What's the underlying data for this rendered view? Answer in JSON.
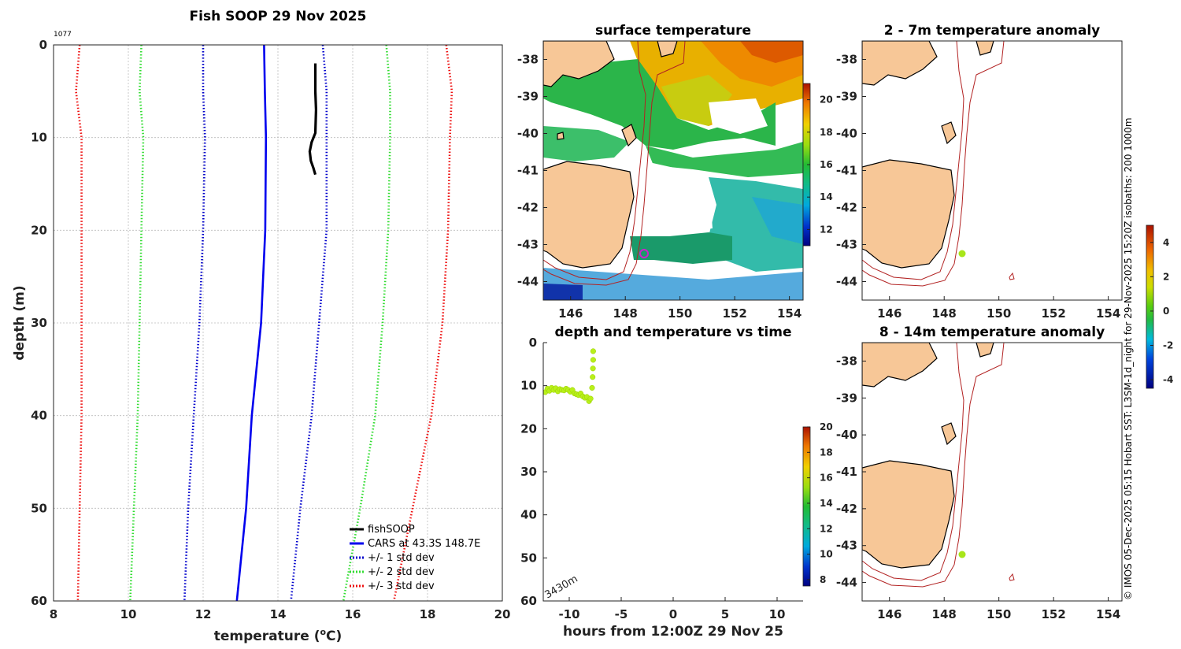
{
  "profile": {
    "title": "Fish SOOP 29 Nov 2025",
    "id_label": "1077",
    "xlabel": "temperature (",
    "xlabel_sup": "o",
    "xlabel_end": "C)",
    "ylabel": "depth (m)",
    "xlim": [
      8,
      20
    ],
    "ylim": [
      0,
      60
    ],
    "xticks": [
      "8",
      "10",
      "12",
      "14",
      "16",
      "18",
      "20"
    ],
    "yticks": [
      "0",
      "10",
      "20",
      "30",
      "40",
      "50",
      "60"
    ],
    "legend": [
      {
        "label": "fishSOOP",
        "color": "#000000",
        "style": "solid"
      },
      {
        "label": "CARS at 43.3S 148.7E",
        "color": "#0000ee",
        "style": "solid"
      },
      {
        "label": "+/- 1 std dev",
        "color": "#0000cc",
        "style": "dotted"
      },
      {
        "label": "+/- 2 std dev",
        "color": "#33dd33",
        "style": "dotted"
      },
      {
        "label": "+/- 3 std dev",
        "color": "#ee1111",
        "style": "dotted"
      }
    ]
  },
  "chart_data": [
    {
      "type": "line",
      "title": "Fish SOOP 29 Nov 2025",
      "xlabel": "temperature (oC)",
      "ylabel": "depth (m)",
      "xlim": [
        8,
        20
      ],
      "ylim": [
        0,
        60
      ],
      "series": [
        {
          "name": "fishSOOP",
          "color": "#000000",
          "points": [
            [
              15.0,
              2.0
            ],
            [
              15.0,
              5.0
            ],
            [
              15.02,
              7.0
            ],
            [
              15.0,
              9.5
            ],
            [
              14.9,
              10.5
            ],
            [
              14.85,
              11.5
            ],
            [
              14.88,
              12.5
            ],
            [
              14.95,
              13.3
            ],
            [
              15.0,
              14.0
            ]
          ]
        },
        {
          "name": "CARS at 43.3S 148.7E",
          "color": "#0000ee",
          "points": [
            [
              13.63,
              0
            ],
            [
              13.65,
              5
            ],
            [
              13.68,
              10
            ],
            [
              13.66,
              20
            ],
            [
              13.55,
              30
            ],
            [
              13.3,
              40
            ],
            [
              13.15,
              50
            ],
            [
              12.9,
              60
            ]
          ]
        },
        {
          "name": "+/- 1 std dev (low)",
          "color": "#0000cc",
          "dotted": true,
          "points": [
            [
              12.0,
              0
            ],
            [
              12.0,
              5
            ],
            [
              12.05,
              10
            ],
            [
              12.0,
              20
            ],
            [
              11.9,
              30
            ],
            [
              11.75,
              40
            ],
            [
              11.6,
              50
            ],
            [
              11.5,
              60
            ]
          ]
        },
        {
          "name": "+/- 1 std dev (high)",
          "color": "#0000cc",
          "dotted": true,
          "points": [
            [
              15.2,
              0
            ],
            [
              15.3,
              5
            ],
            [
              15.3,
              10
            ],
            [
              15.3,
              20
            ],
            [
              15.1,
              30
            ],
            [
              14.9,
              40
            ],
            [
              14.6,
              50
            ],
            [
              14.35,
              60
            ]
          ]
        },
        {
          "name": "+/- 2 std dev (low)",
          "color": "#33dd33",
          "dotted": true,
          "points": [
            [
              10.35,
              0
            ],
            [
              10.3,
              5
            ],
            [
              10.4,
              10
            ],
            [
              10.35,
              20
            ],
            [
              10.3,
              30
            ],
            [
              10.25,
              40
            ],
            [
              10.15,
              50
            ],
            [
              10.05,
              60
            ]
          ]
        },
        {
          "name": "+/- 2 std dev (high)",
          "color": "#33dd33",
          "dotted": true,
          "points": [
            [
              16.9,
              0
            ],
            [
              17.0,
              5
            ],
            [
              17.0,
              10
            ],
            [
              16.95,
              20
            ],
            [
              16.8,
              30
            ],
            [
              16.6,
              40
            ],
            [
              16.2,
              50
            ],
            [
              15.75,
              60
            ]
          ]
        },
        {
          "name": "+/- 3 std dev (low)",
          "color": "#ee1111",
          "dotted": true,
          "points": [
            [
              8.7,
              0
            ],
            [
              8.6,
              5
            ],
            [
              8.75,
              10
            ],
            [
              8.75,
              20
            ],
            [
              8.75,
              30
            ],
            [
              8.75,
              40
            ],
            [
              8.7,
              50
            ],
            [
              8.65,
              60
            ]
          ]
        },
        {
          "name": "+/- 3 std dev (high)",
          "color": "#ee1111",
          "dotted": true,
          "points": [
            [
              18.5,
              0
            ],
            [
              18.65,
              5
            ],
            [
              18.6,
              10
            ],
            [
              18.55,
              20
            ],
            [
              18.4,
              30
            ],
            [
              18.1,
              40
            ],
            [
              17.6,
              50
            ],
            [
              17.1,
              60
            ]
          ]
        }
      ]
    },
    {
      "type": "heatmap",
      "title": "surface temperature",
      "xlim": [
        145,
        154.5
      ],
      "ylim": [
        -44.5,
        -37.5
      ],
      "xticks": [
        "146",
        "148",
        "150",
        "152",
        "154"
      ],
      "yticks": [
        "-38",
        "-39",
        "-40",
        "-41",
        "-42",
        "-43",
        "-44"
      ],
      "colorbar": {
        "range": [
          11,
          21
        ],
        "ticks": [
          "12",
          "14",
          "16",
          "18",
          "20"
        ]
      },
      "marker": {
        "lon": 148.7,
        "lat": -43.3,
        "color": "#cc22cc"
      }
    },
    {
      "type": "scatter",
      "title": "depth and temperature vs time",
      "xlabel": "hours from 12:00Z 29 Nov 25",
      "xlim": [
        -12.5,
        12.5
      ],
      "ylim": [
        0,
        60
      ],
      "xticks": [
        "-10",
        "-5",
        "0",
        "5",
        "10"
      ],
      "yticks": [
        "0",
        "10",
        "20",
        "30",
        "40",
        "50",
        "60"
      ],
      "annotation": "3430m",
      "colorbar": {
        "range": [
          7.5,
          20
        ],
        "ticks": [
          "8",
          "10",
          "12",
          "14",
          "16",
          "18",
          "20"
        ]
      },
      "points_color": "#b8f01a",
      "points": [
        [
          -12.3,
          11.5
        ],
        [
          -12.1,
          10.7
        ],
        [
          -11.9,
          11.2
        ],
        [
          -11.7,
          10.5
        ],
        [
          -11.5,
          11.0
        ],
        [
          -11.3,
          10.6
        ],
        [
          -11.1,
          11.3
        ],
        [
          -10.9,
          10.8
        ],
        [
          -10.7,
          11.0
        ],
        [
          -10.5,
          11.1
        ],
        [
          -10.3,
          10.7
        ],
        [
          -10.1,
          11.0
        ],
        [
          -9.9,
          11.4
        ],
        [
          -9.7,
          11.0
        ],
        [
          -9.5,
          11.8
        ],
        [
          -9.3,
          12.0
        ],
        [
          -9.1,
          12.2
        ],
        [
          -8.9,
          11.8
        ],
        [
          -8.7,
          12.5
        ],
        [
          -8.5,
          12.8
        ],
        [
          -8.3,
          12.6
        ],
        [
          -8.1,
          13.6
        ],
        [
          -7.95,
          13.0
        ],
        [
          -7.8,
          10.5
        ],
        [
          -7.75,
          8.0
        ],
        [
          -7.72,
          6.0
        ],
        [
          -7.7,
          4.0
        ],
        [
          -7.7,
          2.0
        ]
      ]
    },
    {
      "type": "heatmap",
      "title": "2 - 7m temperature anomaly",
      "xlim": [
        145,
        154.5
      ],
      "ylim": [
        -44.5,
        -37.5
      ],
      "xticks": [
        "146",
        "148",
        "150",
        "152",
        "154"
      ],
      "yticks": [
        "-38",
        "-39",
        "-40",
        "-41",
        "-42",
        "-43",
        "-44"
      ],
      "marker": {
        "lon": 148.7,
        "lat": -43.3,
        "color": "#a8e61a"
      }
    },
    {
      "type": "heatmap",
      "title": "8 - 14m temperature anomaly",
      "xlim": [
        145,
        154.5
      ],
      "ylim": [
        -44.5,
        -37.5
      ],
      "xticks": [
        "146",
        "148",
        "150",
        "152",
        "154"
      ],
      "yticks": [
        "-38",
        "-39",
        "-40",
        "-41",
        "-42",
        "-43",
        "-44"
      ],
      "marker": {
        "lon": 148.7,
        "lat": -43.3,
        "color": "#a8e61a"
      }
    },
    {
      "type": "colorbar",
      "title": "anomaly colorbar",
      "range": [
        -4.5,
        5
      ],
      "ticks": [
        "4",
        "2",
        "0",
        "-2",
        "-4"
      ]
    }
  ],
  "maps": {
    "surface_title": "surface temperature",
    "anom1_title": "2 - 7m temperature anomaly",
    "anom2_title": "8 - 14m temperature anomaly",
    "lon_ticks": [
      "146",
      "148",
      "150",
      "152",
      "154"
    ],
    "lat_ticks": [
      "-38",
      "-39",
      "-40",
      "-41",
      "-42",
      "-43",
      "-44"
    ],
    "sst_cbar_ticks": [
      "20",
      "18",
      "16",
      "14",
      "12"
    ],
    "anom_cbar_ticks": [
      "4",
      "2",
      "0",
      "-2",
      "-4"
    ]
  },
  "timeseries": {
    "title": "depth and temperature vs time",
    "xlabel": "hours from 12:00Z 29 Nov 25",
    "xticks": [
      "-10",
      "-5",
      "0",
      "5",
      "10"
    ],
    "yticks": [
      "0",
      "10",
      "20",
      "30",
      "40",
      "50",
      "60"
    ],
    "annotation": "3430m",
    "cbar_ticks": [
      "20",
      "18",
      "16",
      "14",
      "12",
      "10",
      "8"
    ]
  },
  "credit": "© IMOS 05-Dec-2025 05:15 Hobart SST: L3SM-1d_night for 29-Nov-2025 15:20Z isobaths: 200  1000m"
}
